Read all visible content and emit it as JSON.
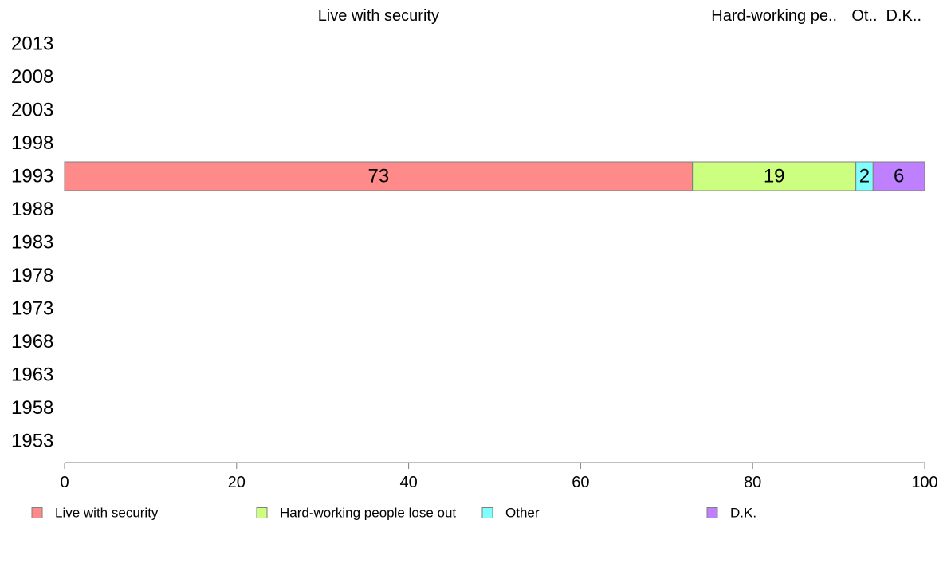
{
  "chart_data": {
    "type": "bar",
    "orientation": "horizontal",
    "stacked": true,
    "categories": [
      "2013",
      "2008",
      "2003",
      "1998",
      "1993",
      "1988",
      "1983",
      "1978",
      "1973",
      "1968",
      "1963",
      "1958",
      "1953"
    ],
    "series": [
      {
        "name": "Live with security",
        "short_label": "Live with security",
        "color": "#ff8a8a",
        "values": [
          null,
          null,
          null,
          null,
          73,
          null,
          null,
          null,
          null,
          null,
          null,
          null,
          null
        ]
      },
      {
        "name": "Hard-working people lose out",
        "short_label": "Hard-working pe..",
        "color": "#ccff80",
        "values": [
          null,
          null,
          null,
          null,
          19,
          null,
          null,
          null,
          null,
          null,
          null,
          null,
          null
        ]
      },
      {
        "name": "Other",
        "short_label": "Ot..",
        "color": "#80ffff",
        "values": [
          null,
          null,
          null,
          null,
          2,
          null,
          null,
          null,
          null,
          null,
          null,
          null,
          null
        ]
      },
      {
        "name": "D.K.",
        "short_label": "D.K..",
        "color": "#bf80ff",
        "values": [
          null,
          null,
          null,
          null,
          6,
          null,
          null,
          null,
          null,
          null,
          null,
          null,
          null
        ]
      }
    ],
    "xlim": [
      0,
      100
    ],
    "xticks": [
      0,
      20,
      40,
      60,
      80,
      100
    ],
    "grid": false,
    "legend": "bottom"
  }
}
